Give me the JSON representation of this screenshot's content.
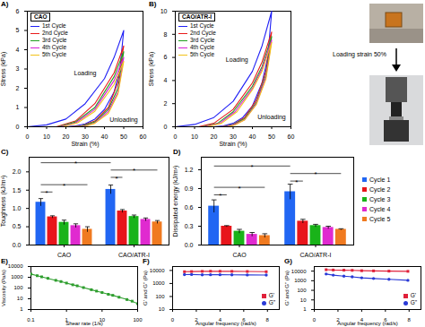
{
  "chart_data": [
    {
      "panel": "A)",
      "type": "line",
      "title": "CAO",
      "legend": "top-left",
      "xlabel": "Strain (%)",
      "ylabel": "Stress (kPa)",
      "xlim": [
        0,
        60
      ],
      "xticks": [
        0,
        10,
        20,
        30,
        40,
        50,
        60
      ],
      "ylim": [
        0,
        6
      ],
      "yticks": [
        0,
        1,
        2,
        3,
        4,
        5,
        6
      ],
      "annotations": [
        {
          "text": "Loading",
          "x": 30,
          "y": 2.8
        },
        {
          "text": "Unloading",
          "x": 50,
          "y": 0.35
        }
      ],
      "series": [
        {
          "name": "1st Cycle",
          "color": "#1f1ff5",
          "x": [
            0,
            10,
            20,
            30,
            40,
            45,
            50,
            48,
            45,
            40,
            35,
            30,
            25,
            20
          ],
          "values": [
            0,
            0.1,
            0.4,
            1.2,
            2.5,
            3.6,
            5.0,
            3.0,
            1.8,
            0.9,
            0.4,
            0.15,
            0.05,
            0
          ]
        },
        {
          "name": "2nd Cycle",
          "color": "#e81c1c",
          "x": [
            15,
            25,
            35,
            45,
            50,
            47,
            42,
            35,
            28,
            22
          ],
          "values": [
            0,
            0.3,
            1.2,
            2.8,
            4.2,
            2.3,
            1.0,
            0.3,
            0.05,
            0
          ]
        },
        {
          "name": "3rd Cycle",
          "color": "#1f9e1f",
          "x": [
            16,
            25,
            35,
            45,
            50,
            47,
            42,
            35,
            28,
            23
          ],
          "values": [
            0,
            0.25,
            1.0,
            2.6,
            3.9,
            2.0,
            0.9,
            0.25,
            0.03,
            0
          ]
        },
        {
          "name": "4th Cycle",
          "color": "#d61fd6",
          "x": [
            17,
            25,
            35,
            45,
            50,
            47,
            42,
            35,
            29,
            24
          ],
          "values": [
            0,
            0.2,
            0.9,
            2.4,
            3.6,
            1.8,
            0.8,
            0.2,
            0.02,
            0
          ]
        },
        {
          "name": "5th Cycle",
          "color": "#f2c21a",
          "x": [
            18,
            26,
            35,
            45,
            50,
            47,
            42,
            35,
            30,
            25
          ],
          "values": [
            0,
            0.2,
            0.8,
            2.2,
            3.4,
            1.7,
            0.7,
            0.18,
            0.02,
            0
          ]
        }
      ]
    },
    {
      "panel": "B)",
      "type": "line",
      "title": "CAO/ATR-I",
      "legend": "top-left",
      "xlabel": "Strain (%)",
      "ylabel": "Stress (kPa)",
      "xlim": [
        0,
        60
      ],
      "xticks": [
        0,
        10,
        20,
        30,
        40,
        50,
        60
      ],
      "ylim": [
        0,
        10
      ],
      "yticks": [
        0,
        2,
        4,
        6,
        8,
        10
      ],
      "annotations": [
        {
          "text": "Loading",
          "x": 32,
          "y": 5.8
        },
        {
          "text": "Unloading",
          "x": 50,
          "y": 0.8
        }
      ],
      "series": [
        {
          "name": "1st Cycle",
          "color": "#1f1ff5",
          "x": [
            0,
            10,
            20,
            30,
            40,
            45,
            50,
            48,
            45,
            40,
            35,
            30,
            25,
            20
          ],
          "values": [
            0,
            0.2,
            0.8,
            2.2,
            4.8,
            7.0,
            10.0,
            6.0,
            3.8,
            1.8,
            0.8,
            0.3,
            0.08,
            0
          ]
        },
        {
          "name": "2nd Cycle",
          "color": "#e81c1c",
          "x": [
            12,
            20,
            30,
            40,
            45,
            50,
            47,
            42,
            36,
            30,
            24
          ],
          "values": [
            0,
            0.3,
            1.5,
            3.8,
            5.6,
            8.2,
            4.8,
            2.3,
            0.8,
            0.2,
            0
          ]
        },
        {
          "name": "3rd Cycle",
          "color": "#1f9e1f",
          "x": [
            14,
            22,
            30,
            40,
            45,
            50,
            47,
            42,
            36,
            30,
            25
          ],
          "values": [
            0,
            0.3,
            1.3,
            3.5,
            5.2,
            7.8,
            4.5,
            2.1,
            0.7,
            0.2,
            0
          ]
        },
        {
          "name": "4th Cycle",
          "color": "#d61fd6",
          "x": [
            15,
            23,
            31,
            40,
            45,
            50,
            47,
            42,
            36,
            30,
            26
          ],
          "values": [
            0,
            0.3,
            1.3,
            3.3,
            5.0,
            7.5,
            4.3,
            2.0,
            0.6,
            0.15,
            0
          ]
        },
        {
          "name": "5th Cycle",
          "color": "#f2c21a",
          "x": [
            16,
            24,
            32,
            40,
            45,
            50,
            47,
            42,
            36,
            31,
            27
          ],
          "values": [
            0,
            0.3,
            1.3,
            3.2,
            4.8,
            7.3,
            4.1,
            1.9,
            0.6,
            0.15,
            0
          ]
        }
      ]
    },
    {
      "panel": "C)",
      "type": "bar",
      "ylabel": "Toughness (kJ/m³)",
      "categories": [
        "CAO",
        "CAO/ATR-I"
      ],
      "ylim": [
        0,
        2.4
      ],
      "yticks": [
        {
          "value": 0,
          "label": "0.0"
        },
        0.5,
        {
          "value": 1,
          "label": "1.0"
        },
        1.5,
        {
          "value": 2,
          "label": "2.0"
        }
      ],
      "series": [
        {
          "color": "#2166f3",
          "values": [
            1.17,
            1.52
          ],
          "errors": [
            0.1,
            0.12
          ]
        },
        {
          "color": "#e8151b",
          "values": [
            0.77,
            0.93
          ],
          "errors": [
            0.03,
            0.04
          ]
        },
        {
          "color": "#19b319",
          "values": [
            0.62,
            0.78
          ],
          "errors": [
            0.06,
            0.04
          ]
        },
        {
          "color": "#e02ad0",
          "values": [
            0.53,
            0.7
          ],
          "errors": [
            0.05,
            0.04
          ]
        },
        {
          "color": "#f07a20",
          "values": [
            0.43,
            0.63
          ],
          "errors": [
            0.07,
            0.04
          ]
        }
      ],
      "significance": [
        {
          "from": [
            0,
            0
          ],
          "to": [
            0,
            1
          ],
          "y": 1.45,
          "label": "*"
        },
        {
          "from": [
            0,
            0
          ],
          "to": [
            0,
            4
          ],
          "y": 1.65,
          "label": "*"
        },
        {
          "from": [
            1,
            0
          ],
          "to": [
            1,
            1
          ],
          "y": 1.85,
          "label": "*"
        },
        {
          "from": [
            1,
            0
          ],
          "to": [
            1,
            4
          ],
          "y": 2.05,
          "label": "*"
        },
        {
          "from": [
            0,
            0
          ],
          "to": [
            1,
            0
          ],
          "y": 2.25,
          "label": "*"
        }
      ]
    },
    {
      "panel": "D)",
      "type": "bar",
      "ylabel": "Dissipated energy (kJ/m³)",
      "legend": "right",
      "categories": [
        "CAO",
        "CAO/ATR-I"
      ],
      "ylim": [
        0,
        1.4
      ],
      "yticks": [
        {
          "value": 0,
          "label": "0.0"
        },
        0.3,
        0.6,
        0.9,
        1.2
      ],
      "series": [
        {
          "name": "Cycle 1",
          "color": "#2166f3",
          "values": [
            0.62,
            0.85
          ],
          "errors": [
            0.1,
            0.12
          ]
        },
        {
          "name": "Cycle 2",
          "color": "#e8151b",
          "values": [
            0.3,
            0.38
          ],
          "errors": [
            0.01,
            0.03
          ]
        },
        {
          "name": "Cycle 3",
          "color": "#19b319",
          "values": [
            0.22,
            0.31
          ],
          "errors": [
            0.03,
            0.02
          ]
        },
        {
          "name": "Cycle 4",
          "color": "#e02ad0",
          "values": [
            0.17,
            0.28
          ],
          "errors": [
            0.03,
            0.02
          ]
        },
        {
          "name": "Cycle 5",
          "color": "#f07a20",
          "values": [
            0.15,
            0.25
          ],
          "errors": [
            0.03,
            0.01
          ]
        }
      ],
      "significance": [
        {
          "from": [
            0,
            0
          ],
          "to": [
            0,
            1
          ],
          "y": 0.8,
          "label": "*"
        },
        {
          "from": [
            0,
            0
          ],
          "to": [
            0,
            4
          ],
          "y": 0.92,
          "label": "*"
        },
        {
          "from": [
            1,
            0
          ],
          "to": [
            1,
            1
          ],
          "y": 1.02,
          "label": "*"
        },
        {
          "from": [
            1,
            0
          ],
          "to": [
            1,
            4
          ],
          "y": 1.14,
          "label": "*"
        },
        {
          "from": [
            0,
            0
          ],
          "to": [
            1,
            0
          ],
          "y": 1.26,
          "label": "*"
        }
      ]
    },
    {
      "panel": "E)",
      "type": "line",
      "log": true,
      "xlabel": "Shear rate (1/s)",
      "ylabel": "Viscosity (Pa/s)",
      "xlim": [
        0.1,
        100
      ],
      "xticks": [
        0.1,
        1,
        10,
        100
      ],
      "ylim": [
        1,
        10000
      ],
      "yticks": [
        1,
        10,
        100,
        1000,
        10000
      ],
      "series": [
        {
          "color": "#2e9e2e",
          "marker": "square",
          "x": [
            0.1,
            0.15,
            0.2,
            0.3,
            0.5,
            0.7,
            1,
            1.5,
            2,
            3,
            5,
            7,
            10,
            15,
            20,
            30,
            50,
            70,
            100
          ],
          "values": [
            2000,
            1400,
            1100,
            800,
            520,
            400,
            290,
            200,
            160,
            110,
            70,
            52,
            38,
            26,
            21,
            14,
            8.5,
            6,
            3.5
          ]
        }
      ]
    },
    {
      "panel": "F)",
      "type": "line",
      "log": "y",
      "legend": "bottom-right",
      "xlabel": "Angular frequency (rad/s)",
      "ylabel": "G' and G\" (Pa)",
      "xlim": [
        0,
        9
      ],
      "xticks": [
        0,
        2,
        4,
        6,
        8
      ],
      "ylim": [
        10,
        20000
      ],
      "yticks": [
        10,
        100,
        1000,
        10000
      ],
      "series": [
        {
          "name": "G'",
          "color": "#e0203a",
          "marker": "square",
          "x": [
            1,
            1.6,
            2.5,
            3.2,
            4,
            5,
            6.3,
            7.9
          ],
          "values": [
            8000,
            8200,
            8500,
            8700,
            8600,
            8500,
            8300,
            8000
          ]
        },
        {
          "name": "G\"",
          "color": "#2a3ad6",
          "marker": "circle",
          "x": [
            1,
            1.6,
            2.5,
            3.2,
            4,
            5,
            6.3,
            7.9
          ],
          "values": [
            4800,
            4900,
            4600,
            4700,
            4700,
            4600,
            4500,
            4400
          ]
        }
      ]
    },
    {
      "panel": "G)",
      "type": "line",
      "log": "y",
      "legend": "bottom-right",
      "xlabel": "Angular frequency (rad/s)",
      "ylabel": "G' and G\" (Pa)",
      "xlim": [
        0,
        9
      ],
      "xticks": [
        0,
        2,
        4,
        6,
        8
      ],
      "ylim": [
        1,
        30000
      ],
      "yticks": [
        1,
        10,
        100,
        1000,
        10000
      ],
      "series": [
        {
          "name": "G'",
          "color": "#e0203a",
          "marker": "square",
          "x": [
            1,
            1.6,
            2.5,
            3.2,
            4,
            5,
            6.3,
            7.9
          ],
          "values": [
            14000,
            13000,
            12500,
            12000,
            11000,
            10500,
            10000,
            9500
          ]
        },
        {
          "name": "G\"",
          "color": "#2a3ad6",
          "marker": "circle",
          "x": [
            1,
            1.6,
            2.5,
            3.2,
            4,
            5,
            6.3,
            7.9
          ],
          "values": [
            5000,
            3800,
            3000,
            2500,
            2000,
            1700,
            1400,
            1100
          ]
        }
      ]
    }
  ],
  "photo": {
    "caption": "Loading strain 50%"
  }
}
